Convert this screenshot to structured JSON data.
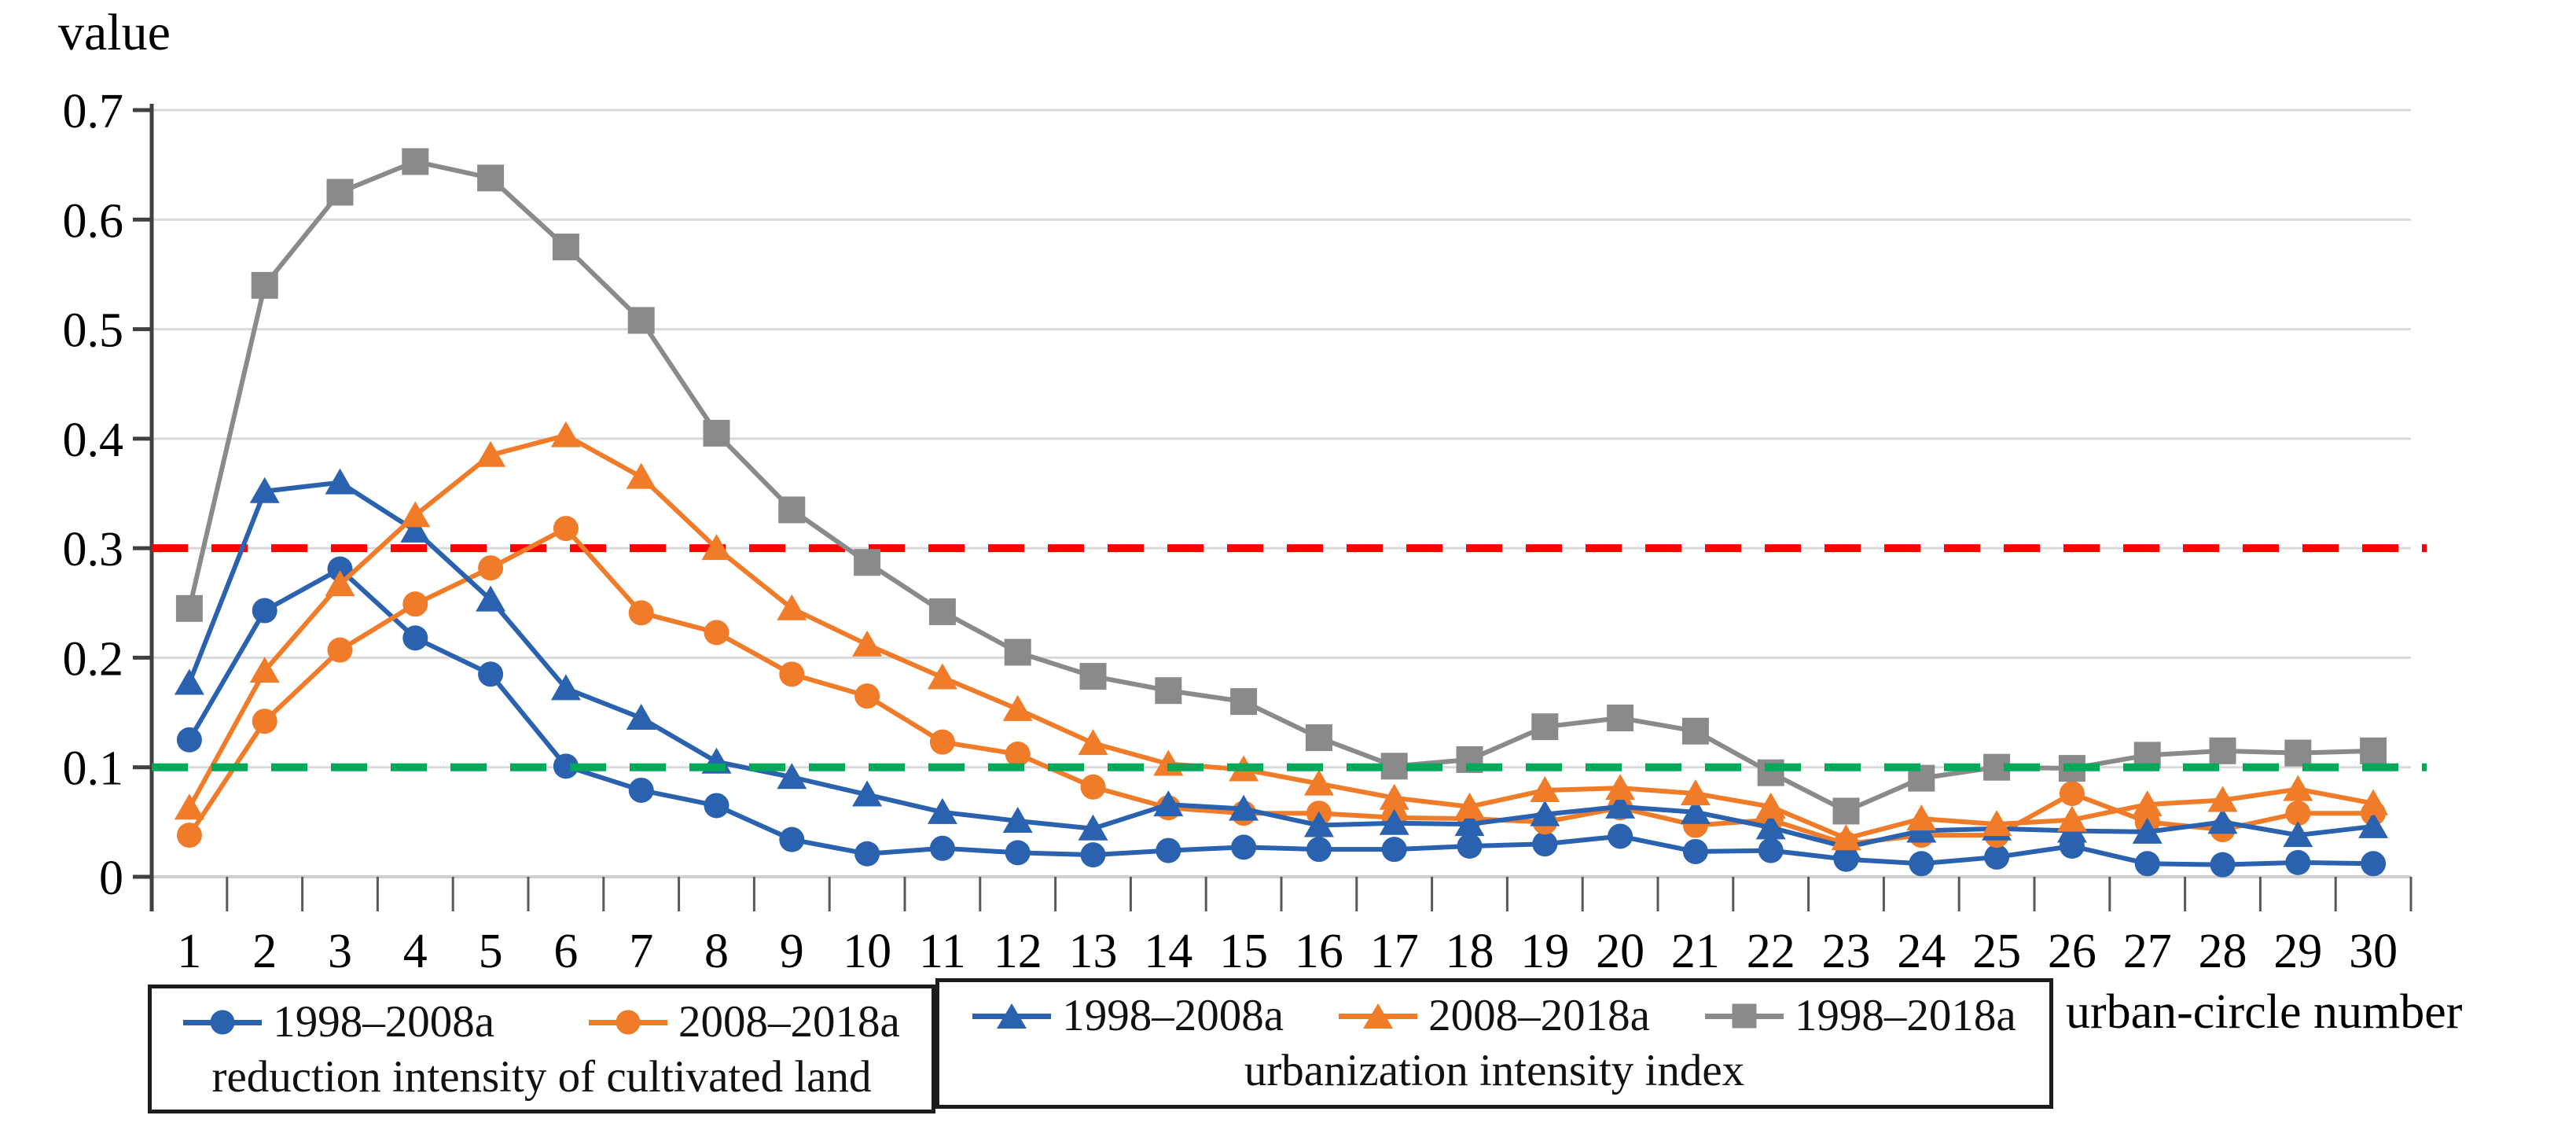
{
  "chart_data": {
    "type": "line",
    "title": "",
    "ylabel": "value",
    "xlabel": "urban-circle number",
    "x": [
      1,
      2,
      3,
      4,
      5,
      6,
      7,
      8,
      9,
      10,
      11,
      12,
      13,
      14,
      15,
      16,
      17,
      18,
      19,
      20,
      21,
      22,
      23,
      24,
      25,
      26,
      27,
      28,
      29,
      30
    ],
    "ylim": [
      0,
      0.7
    ],
    "yticks": [
      0,
      0.1,
      0.2,
      0.3,
      0.4,
      0.5,
      0.6,
      0.7
    ],
    "grid": "horizontal",
    "legend_position": "bottom",
    "series": [
      {
        "name": "1998–2008a",
        "group": "reduction intensity of cultivated land",
        "marker": "circle",
        "color": "#2A62B0",
        "values": [
          0.125,
          0.243,
          0.281,
          0.218,
          0.185,
          0.101,
          0.079,
          0.065,
          0.034,
          0.021,
          0.026,
          0.022,
          0.02,
          0.024,
          0.027,
          0.025,
          0.025,
          0.028,
          0.03,
          0.037,
          0.023,
          0.024,
          0.016,
          0.012,
          0.018,
          0.028,
          0.012,
          0.011,
          0.013,
          0.012
        ]
      },
      {
        "name": "2008–2018a",
        "group": "reduction intensity of cultivated land",
        "marker": "circle",
        "color": "#F07B28",
        "values": [
          0.038,
          0.142,
          0.207,
          0.249,
          0.282,
          0.318,
          0.241,
          0.223,
          0.185,
          0.165,
          0.123,
          0.112,
          0.082,
          0.063,
          0.058,
          0.058,
          0.054,
          0.053,
          0.05,
          0.063,
          0.047,
          0.052,
          0.03,
          0.038,
          0.038,
          0.076,
          0.05,
          0.043,
          0.058,
          0.058
        ]
      },
      {
        "name": "1998–2008a",
        "group": "urbanization intensity index",
        "marker": "triangle",
        "color": "#2A62B0",
        "values": [
          0.177,
          0.352,
          0.36,
          0.316,
          0.253,
          0.172,
          0.145,
          0.105,
          0.091,
          0.075,
          0.059,
          0.051,
          0.044,
          0.066,
          0.062,
          0.047,
          0.049,
          0.048,
          0.057,
          0.064,
          0.059,
          0.045,
          0.027,
          0.042,
          0.044,
          0.042,
          0.041,
          0.05,
          0.038,
          0.046
        ]
      },
      {
        "name": "2008–2018a",
        "group": "urbanization intensity index",
        "marker": "triangle",
        "color": "#F07B28",
        "values": [
          0.063,
          0.188,
          0.267,
          0.33,
          0.385,
          0.403,
          0.365,
          0.3,
          0.245,
          0.212,
          0.182,
          0.153,
          0.122,
          0.103,
          0.098,
          0.085,
          0.072,
          0.064,
          0.079,
          0.081,
          0.076,
          0.064,
          0.035,
          0.053,
          0.048,
          0.052,
          0.066,
          0.07,
          0.08,
          0.067
        ]
      },
      {
        "name": "1998–2018a",
        "group": "urbanization intensity index",
        "marker": "square",
        "color": "#8A8A8A",
        "values": [
          0.245,
          0.54,
          0.625,
          0.653,
          0.638,
          0.575,
          0.508,
          0.405,
          0.335,
          0.287,
          0.242,
          0.205,
          0.183,
          0.17,
          0.16,
          0.127,
          0.101,
          0.107,
          0.137,
          0.145,
          0.133,
          0.095,
          0.06,
          0.09,
          0.1,
          0.099,
          0.111,
          0.115,
          0.113,
          0.115
        ]
      }
    ],
    "reference_lines": [
      {
        "value": 0.3,
        "color": "#FF0000",
        "style": "dashed"
      },
      {
        "value": 0.1,
        "color": "#00A95A",
        "style": "dashed"
      }
    ]
  },
  "legend": {
    "left": {
      "caption": "reduction intensity of cultivated land",
      "items": [
        {
          "label": "1998–2008a",
          "marker": "circle",
          "color": "#2A62B0"
        },
        {
          "label": "2008–2018a",
          "marker": "circle",
          "color": "#F07B28"
        }
      ]
    },
    "right": {
      "caption": "urbanization intensity index",
      "items": [
        {
          "label": "1998–2008a",
          "marker": "triangle",
          "color": "#2A62B0"
        },
        {
          "label": "2008–2018a",
          "marker": "triangle",
          "color": "#F07B28"
        },
        {
          "label": "1998–2018a",
          "marker": "square",
          "color": "#8A8A8A"
        }
      ]
    }
  }
}
